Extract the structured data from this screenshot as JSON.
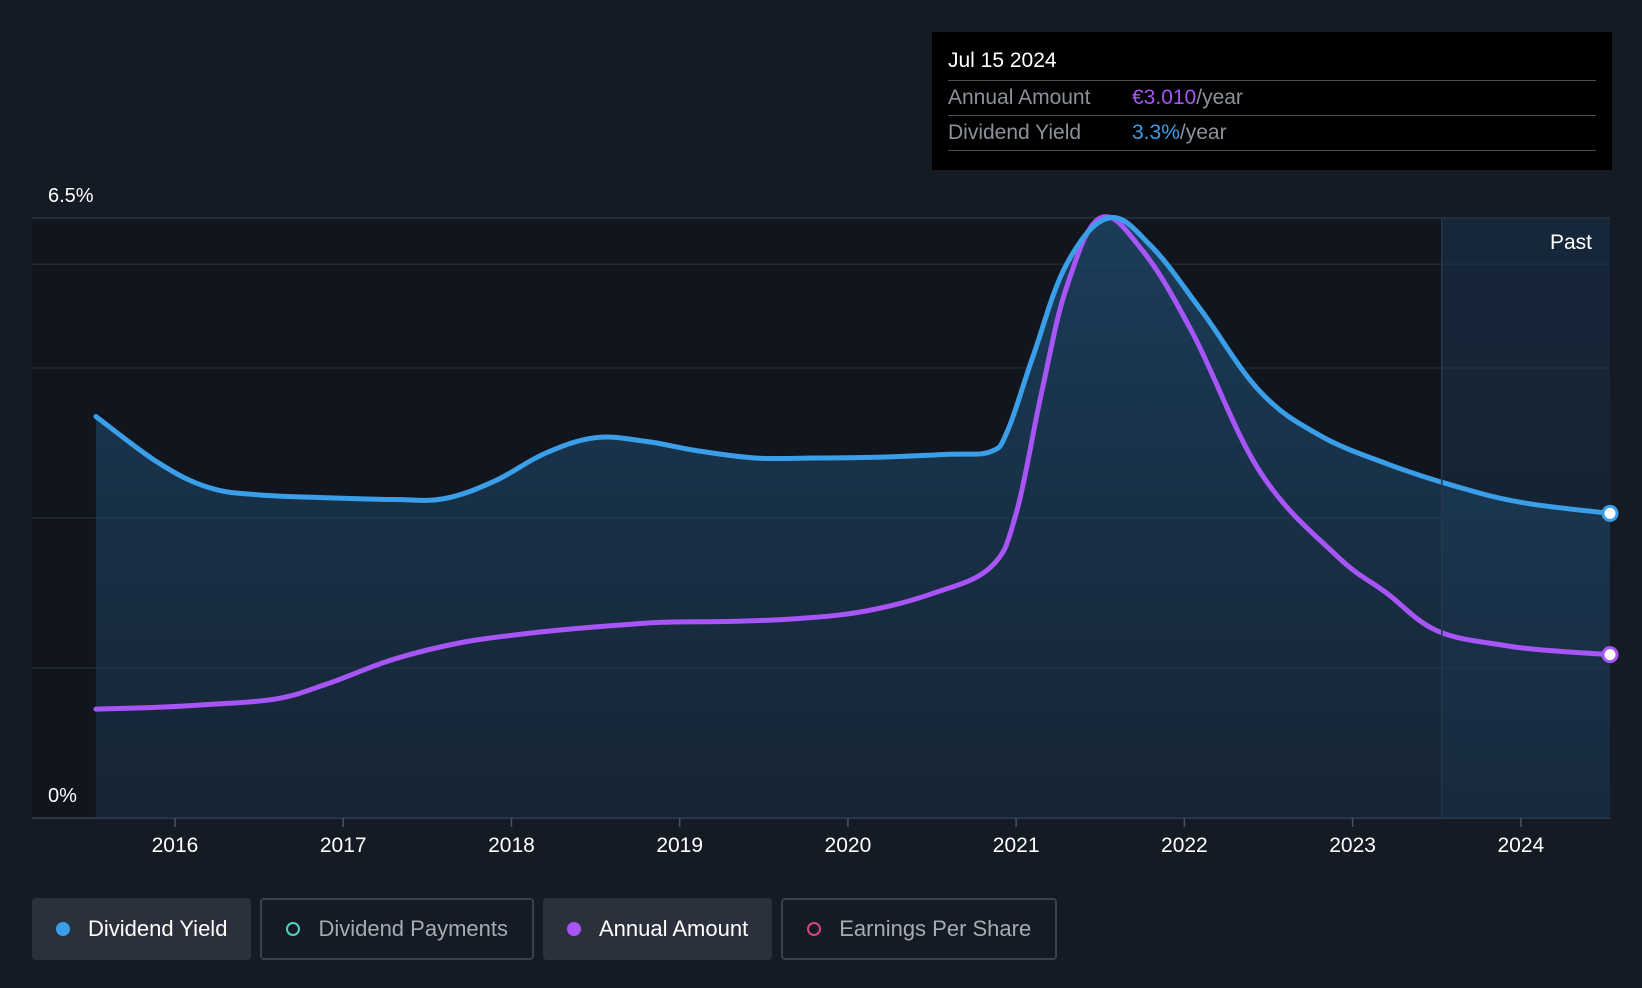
{
  "tooltip": {
    "date": "Jul 15 2024",
    "rows": [
      {
        "label": "Annual Amount",
        "value": "€3.010",
        "unit": "/year",
        "color": "#a855f7"
      },
      {
        "label": "Dividend Yield",
        "value": "3.3%",
        "unit": "/year",
        "color": "#3b9ee8"
      }
    ]
  },
  "legend": [
    {
      "label": "Dividend Yield",
      "color": "#3b9ee8",
      "active": true
    },
    {
      "label": "Dividend Payments",
      "color": "#4fd1c5",
      "active": false
    },
    {
      "label": "Annual Amount",
      "color": "#a855f7",
      "active": true
    },
    {
      "label": "Earnings Per Share",
      "color": "#d9467f",
      "active": false
    }
  ],
  "chart_data": {
    "type": "line",
    "ylim": [
      0,
      6.5
    ],
    "y_tick_labels": [
      "0%",
      "6.5%"
    ],
    "x_ticks": [
      2016,
      2017,
      2018,
      2019,
      2020,
      2021,
      2022,
      2023,
      2024
    ],
    "xlim": [
      2015.15,
      2024.53
    ],
    "past_region_start": 2023.53,
    "past_label": "Past",
    "grid": true,
    "series": [
      {
        "name": "Dividend Yield",
        "color": "#3b9ee8",
        "filled": true,
        "points": [
          [
            2015.53,
            4.35
          ],
          [
            2015.9,
            3.85
          ],
          [
            2016.2,
            3.58
          ],
          [
            2016.5,
            3.5
          ],
          [
            2016.9,
            3.47
          ],
          [
            2017.3,
            3.45
          ],
          [
            2017.6,
            3.46
          ],
          [
            2017.9,
            3.65
          ],
          [
            2018.2,
            3.95
          ],
          [
            2018.5,
            4.12
          ],
          [
            2018.8,
            4.08
          ],
          [
            2019.1,
            3.98
          ],
          [
            2019.45,
            3.9
          ],
          [
            2019.8,
            3.9
          ],
          [
            2020.2,
            3.91
          ],
          [
            2020.6,
            3.94
          ],
          [
            2020.85,
            3.97
          ],
          [
            2020.95,
            4.2
          ],
          [
            2021.1,
            5.0
          ],
          [
            2021.3,
            6.0
          ],
          [
            2021.55,
            6.5
          ],
          [
            2021.8,
            6.2
          ],
          [
            2022.1,
            5.5
          ],
          [
            2022.45,
            4.62
          ],
          [
            2022.8,
            4.15
          ],
          [
            2023.2,
            3.84
          ],
          [
            2023.6,
            3.6
          ],
          [
            2024.0,
            3.42
          ],
          [
            2024.53,
            3.3
          ]
        ]
      },
      {
        "name": "Annual Amount",
        "color": "#a855f7",
        "filled": false,
        "points": [
          [
            2015.53,
            1.18
          ],
          [
            2015.9,
            1.2
          ],
          [
            2016.2,
            1.23
          ],
          [
            2016.6,
            1.29
          ],
          [
            2016.9,
            1.45
          ],
          [
            2017.3,
            1.72
          ],
          [
            2017.7,
            1.9
          ],
          [
            2018.1,
            2.0
          ],
          [
            2018.5,
            2.07
          ],
          [
            2018.9,
            2.12
          ],
          [
            2019.3,
            2.13
          ],
          [
            2019.7,
            2.16
          ],
          [
            2020.1,
            2.24
          ],
          [
            2020.5,
            2.43
          ],
          [
            2020.85,
            2.72
          ],
          [
            2021.0,
            3.3
          ],
          [
            2021.15,
            4.6
          ],
          [
            2021.3,
            5.75
          ],
          [
            2021.5,
            6.5
          ],
          [
            2021.75,
            6.15
          ],
          [
            2022.05,
            5.25
          ],
          [
            2022.45,
            3.75
          ],
          [
            2022.9,
            2.85
          ],
          [
            2023.2,
            2.44
          ],
          [
            2023.5,
            2.03
          ],
          [
            2023.9,
            1.87
          ],
          [
            2024.2,
            1.81
          ],
          [
            2024.53,
            1.77
          ]
        ]
      }
    ]
  }
}
